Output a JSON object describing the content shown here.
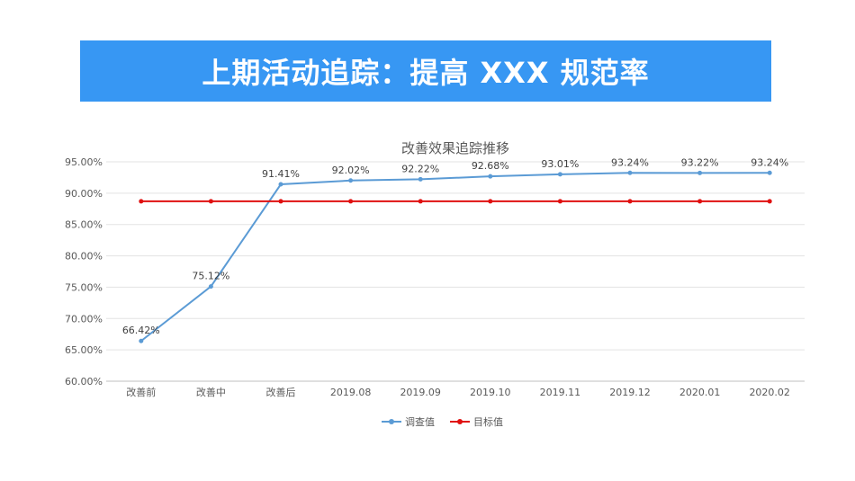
{
  "banner": {
    "title": "上期活动追踪：提高 XXX 规范率",
    "color": "#3797f3"
  },
  "chart_data": {
    "type": "line",
    "title": "改善效果追踪推移",
    "categories": [
      "改善前",
      "改善中",
      "改善后",
      "2019.08",
      "2019.09",
      "2019.10",
      "2019.11",
      "2019.12",
      "2020.01",
      "2020.02"
    ],
    "ylim": [
      60,
      95
    ],
    "yticks": [
      60,
      65,
      70,
      75,
      80,
      85,
      90,
      95
    ],
    "ytick_labels": [
      "60.00%",
      "65.00%",
      "70.00%",
      "75.00%",
      "80.00%",
      "85.00%",
      "90.00%",
      "95.00%"
    ],
    "grid": true,
    "legend_position": "bottom",
    "series": [
      {
        "name": "调查值",
        "color": "#5b9bd5",
        "values": [
          66.42,
          75.12,
          91.41,
          92.02,
          92.22,
          92.68,
          93.01,
          93.24,
          93.22,
          93.24
        ],
        "labels": [
          "66.42%",
          "75.12%",
          "91.41%",
          "92.02%",
          "92.22%",
          "92.68%",
          "93.01%",
          "93.24%",
          "93.22%",
          "93.24%"
        ]
      },
      {
        "name": "目标值",
        "color": "#e01010",
        "values": [
          88.7,
          88.7,
          88.7,
          88.7,
          88.7,
          88.7,
          88.7,
          88.7,
          88.7,
          88.7
        ]
      }
    ]
  }
}
